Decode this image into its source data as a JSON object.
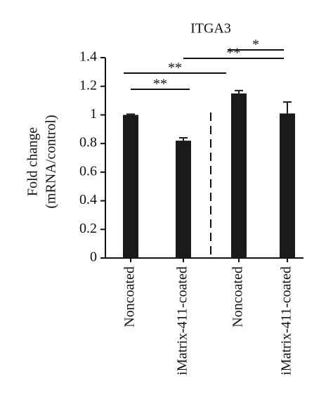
{
  "chart_data": {
    "type": "bar",
    "title": "ITGA3",
    "ylabel": [
      "Fold change",
      "(mRNA/control)"
    ],
    "categories": [
      "Noncoated",
      "iMatrix-411-coated",
      "Noncoated",
      "iMatrix-411-coated"
    ],
    "values": [
      1.0,
      0.82,
      1.15,
      1.01
    ],
    "errors": [
      0.005,
      0.02,
      0.02,
      0.08
    ],
    "color": "#1a1a1a",
    "ylim": [
      0,
      1.4
    ],
    "yticks": [
      0,
      0.2,
      0.4,
      0.6,
      0.8,
      1,
      1.2,
      1.4
    ],
    "comparisons": [
      {
        "pair": [
          0,
          1
        ],
        "label": "**"
      },
      {
        "pair": [
          0,
          2
        ],
        "label": "**"
      },
      {
        "pair": [
          1,
          3
        ],
        "label": "**"
      },
      {
        "pair": [
          2,
          3
        ],
        "label": "*"
      }
    ]
  }
}
